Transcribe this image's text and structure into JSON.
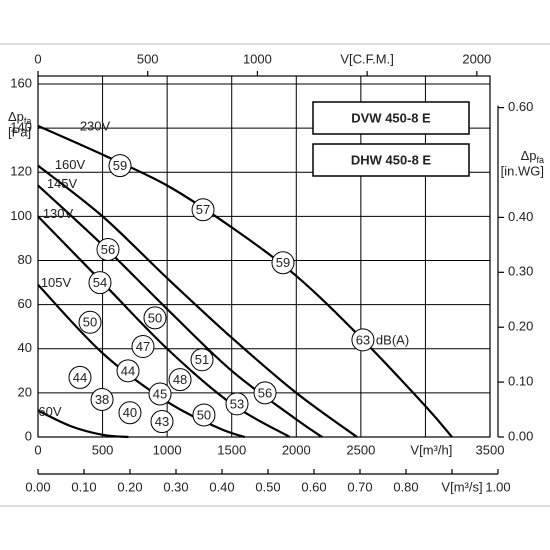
{
  "chart_data": {
    "type": "line",
    "boxes": [
      "DVW 450-8 E",
      "DHW 450-8 E"
    ],
    "y_label": {
      "symbol": "Δp",
      "sub": "fa",
      "unit": "[Pa]"
    },
    "y2_label": {
      "symbol": "Δp",
      "sub": "fa",
      "unit": "[in.WG]"
    },
    "xlim": [
      0,
      3500
    ],
    "xticks": [
      0,
      500,
      1000,
      1500,
      2000,
      2500,
      {
        "value": 3000,
        "label": "V[m³/h]"
      },
      3500
    ],
    "x2lim": [
      0,
      2060
    ],
    "x2ticks": [
      0,
      500,
      1000,
      {
        "value": 1500,
        "label": "V[C.F.M.]"
      },
      2000
    ],
    "x3lim": [
      0,
      1.0
    ],
    "x3ticks": [
      {
        "value": 0,
        "label": "0.00"
      },
      {
        "value": 0.1,
        "label": "0.10"
      },
      {
        "value": 0.2,
        "label": "0.20"
      },
      {
        "value": 0.3,
        "label": "0.30"
      },
      {
        "value": 0.4,
        "label": "0.40"
      },
      {
        "value": 0.5,
        "label": "0.50"
      },
      {
        "value": 0.6,
        "label": "0.60"
      },
      {
        "value": 0.7,
        "label": "0.70"
      },
      {
        "value": 0.8,
        "label": "0.80"
      },
      {
        "value": 0.9,
        "label": "V[m³/s]"
      },
      {
        "value": 1.0,
        "label": "1.00"
      }
    ],
    "ylim": [
      0,
      160
    ],
    "yticks": [
      0,
      20,
      40,
      60,
      80,
      100,
      120,
      140,
      160
    ],
    "y2lim": [
      0,
      0.643
    ],
    "y2ticks": [
      {
        "value": 0,
        "label": "0.00"
      },
      {
        "value": 0.1,
        "label": "0.10"
      },
      {
        "value": 0.2,
        "label": "0.20"
      },
      {
        "value": 0.3,
        "label": "0.30"
      },
      {
        "value": 0.4,
        "label": "0.40"
      },
      {
        "value": 0.6,
        "label": "0.60"
      }
    ],
    "grid": true,
    "series": [
      {
        "name": "230V",
        "color": "#000000",
        "x": [
          0,
          500,
          1000,
          1500,
          2000,
          2500,
          3000,
          3206
        ],
        "values": [
          141,
          128,
          114,
          95,
          73,
          45,
          14,
          0
        ]
      },
      {
        "name": "160V",
        "color": "#000000",
        "x": [
          0,
          500,
          1000,
          1500,
          2000,
          2470
        ],
        "values": [
          123,
          100,
          72,
          45,
          20,
          0
        ]
      },
      {
        "name": "145V",
        "color": "#000000",
        "x": [
          0,
          500,
          1000,
          1500,
          2000,
          2200
        ],
        "values": [
          114,
          87,
          58,
          30,
          8,
          0
        ]
      },
      {
        "name": "130V",
        "color": "#000000",
        "x": [
          0,
          500,
          1000,
          1500,
          1950
        ],
        "values": [
          100,
          70,
          40,
          15,
          0
        ]
      },
      {
        "name": "105V",
        "color": "#000000",
        "x": [
          0,
          500,
          1000,
          1400,
          1600
        ],
        "values": [
          69,
          38,
          16,
          4,
          0
        ]
      },
      {
        "name": "60V",
        "color": "#000000",
        "x": [
          0,
          250,
          500,
          700
        ],
        "values": [
          12,
          5,
          1,
          0
        ]
      }
    ],
    "annotations": [
      {
        "label": "59",
        "x": 635,
        "y": 123
      },
      {
        "label": "57",
        "x": 1278,
        "y": 103
      },
      {
        "label": "59",
        "x": 1897,
        "y": 79
      },
      {
        "label": "63",
        "x": 2516,
        "y": 44
      },
      {
        "label": "56",
        "x": 542,
        "y": 85
      },
      {
        "label": "54",
        "x": 480,
        "y": 70
      },
      {
        "label": "50",
        "x": 403,
        "y": 52
      },
      {
        "label": "47",
        "x": 813,
        "y": 41
      },
      {
        "label": "50",
        "x": 906,
        "y": 54
      },
      {
        "label": "51",
        "x": 1270,
        "y": 35
      },
      {
        "label": "44",
        "x": 325,
        "y": 27
      },
      {
        "label": "44",
        "x": 697,
        "y": 30
      },
      {
        "label": "45",
        "x": 945,
        "y": 19.5
      },
      {
        "label": "48",
        "x": 1100,
        "y": 26
      },
      {
        "label": "56",
        "x": 1758,
        "y": 20
      },
      {
        "label": "38",
        "x": 496,
        "y": 17
      },
      {
        "label": "40",
        "x": 712,
        "y": 11
      },
      {
        "label": "43",
        "x": 960,
        "y": 7
      },
      {
        "label": "50",
        "x": 1285,
        "y": 10
      },
      {
        "label": "53",
        "x": 1541,
        "y": 15
      }
    ],
    "annotation_unit": "dB(A)"
  }
}
